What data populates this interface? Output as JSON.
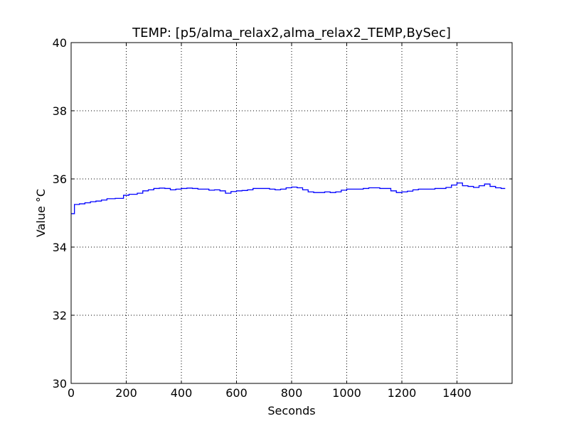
{
  "chart_data": {
    "type": "line",
    "title": "TEMP: [p5/alma_relax2,alma_relax2_TEMP,BySec]",
    "xlabel": "Seconds",
    "ylabel": "Value °C",
    "xlim": [
      0,
      1600
    ],
    "ylim": [
      30,
      40
    ],
    "xticks": [
      0,
      200,
      400,
      600,
      800,
      1000,
      1200,
      1400
    ],
    "yticks": [
      30,
      32,
      34,
      36,
      38,
      40
    ],
    "grid": true,
    "line_style": "step",
    "series": [
      {
        "color": "#0000ff",
        "x": [
          0,
          12,
          30,
          50,
          70,
          90,
          110,
          130,
          160,
          190,
          210,
          240,
          260,
          280,
          300,
          320,
          340,
          360,
          380,
          400,
          420,
          440,
          460,
          480,
          500,
          520,
          540,
          560,
          580,
          600,
          620,
          640,
          660,
          680,
          700,
          720,
          740,
          760,
          780,
          800,
          820,
          840,
          860,
          880,
          900,
          920,
          940,
          960,
          980,
          1000,
          1020,
          1040,
          1060,
          1080,
          1100,
          1120,
          1140,
          1160,
          1180,
          1200,
          1220,
          1240,
          1260,
          1280,
          1300,
          1320,
          1340,
          1360,
          1380,
          1400,
          1420,
          1440,
          1460,
          1480,
          1500,
          1520,
          1540,
          1560,
          1575
        ],
        "values": [
          34.98,
          35.25,
          35.27,
          35.3,
          35.33,
          35.35,
          35.38,
          35.42,
          35.43,
          35.52,
          35.55,
          35.58,
          35.65,
          35.68,
          35.72,
          35.73,
          35.72,
          35.68,
          35.7,
          35.72,
          35.73,
          35.72,
          35.7,
          35.7,
          35.67,
          35.68,
          35.65,
          35.58,
          35.63,
          35.65,
          35.66,
          35.68,
          35.72,
          35.72,
          35.72,
          35.7,
          35.68,
          35.7,
          35.74,
          35.76,
          35.74,
          35.68,
          35.62,
          35.6,
          35.6,
          35.62,
          35.6,
          35.62,
          35.67,
          35.7,
          35.7,
          35.7,
          35.72,
          35.74,
          35.74,
          35.72,
          35.72,
          35.65,
          35.6,
          35.62,
          35.64,
          35.68,
          35.7,
          35.7,
          35.7,
          35.72,
          35.72,
          35.75,
          35.82,
          35.88,
          35.8,
          35.78,
          35.75,
          35.8,
          35.85,
          35.78,
          35.74,
          35.72,
          35.72
        ]
      }
    ]
  }
}
